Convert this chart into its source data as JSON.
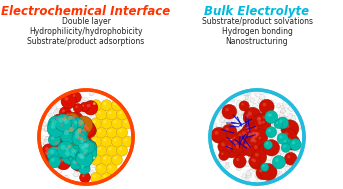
{
  "title_left": "Electrochemical Interface",
  "title_right": "Bulk Electrolyte",
  "title_left_color": "#FF3300",
  "title_right_color": "#00BBDD",
  "text_left": [
    "Double layer",
    "Hydrophilicity/hydrophobicity",
    "Substrate/product adsorptions"
  ],
  "text_right": [
    "Substrate/product solvations",
    "Hydrogen bonding",
    "Nanostructuring"
  ],
  "text_color": "#222222",
  "background_color": "#ffffff",
  "circle_left_color": "#FF4400",
  "circle_right_color": "#22BBDD",
  "figsize": [
    3.43,
    1.89
  ],
  "dpi": 100
}
